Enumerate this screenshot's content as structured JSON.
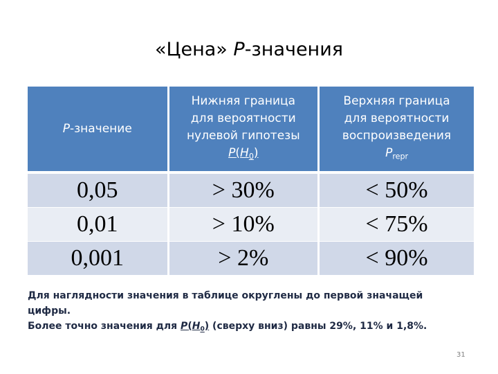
{
  "title": [
    {
      "text": "«Цена» "
    },
    {
      "text": "P",
      "style": "italic"
    },
    {
      "text": "-значения"
    }
  ],
  "table": {
    "header": [
      [
        [
          {
            "text": "P",
            "style": "italic"
          },
          {
            "text": "-значение"
          }
        ]
      ],
      [
        [
          {
            "text": "Нижняя граница"
          }
        ],
        [
          {
            "text": "для вероятности"
          }
        ],
        [
          {
            "text": "нулевой гипотезы"
          }
        ],
        [
          {
            "text": "P",
            "style": "italic underline"
          },
          {
            "text": "(",
            "style": "underline"
          },
          {
            "text": "H",
            "style": "italic underline"
          },
          {
            "text": "0",
            "style": "sub underline"
          },
          {
            "text": ")",
            "style": "underline"
          }
        ]
      ],
      [
        [
          {
            "text": "Верхняя граница"
          }
        ],
        [
          {
            "text": "для вероятности"
          }
        ],
        [
          {
            "text": "воспроизведения"
          }
        ],
        [
          {
            "text": "P",
            "style": "italic"
          },
          {
            "text": "repr",
            "style": "sub"
          }
        ]
      ]
    ],
    "rows": [
      [
        "0,05",
        "> 30%",
        "< 50%"
      ],
      [
        "0,01",
        "> 10%",
        "< 75%"
      ],
      [
        "0,001",
        "> 2%",
        "< 90%"
      ]
    ]
  },
  "notes": [
    [
      {
        "text": "Для наглядности значения в таблице округлены до первой значащей цифры."
      }
    ],
    [
      {
        "text": "Более точно значения для "
      },
      {
        "text": "P",
        "style": "italic underline"
      },
      {
        "text": "(",
        "style": "underline"
      },
      {
        "text": "H",
        "style": "italic underline"
      },
      {
        "text": "0",
        "style": "sub underline"
      },
      {
        "text": ")",
        "style": "underline"
      },
      {
        "text": " (сверху вниз) равны 29%, 11% и 1,8%."
      }
    ]
  ],
  "page_number": "31"
}
